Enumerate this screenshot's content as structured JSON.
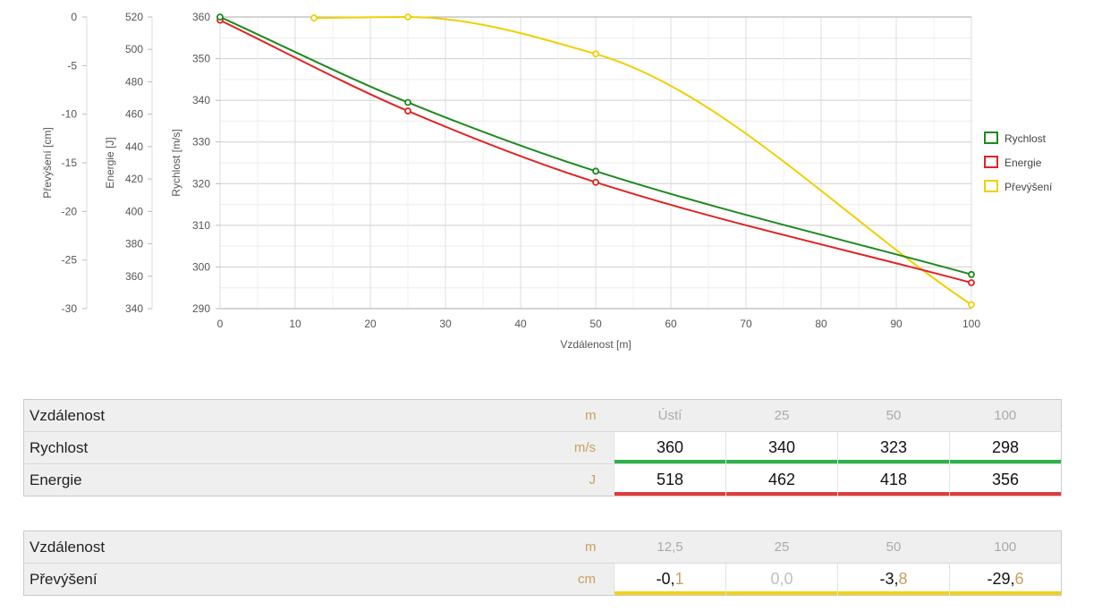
{
  "chart_data": {
    "type": "line",
    "xlabel": "Vzdálenost [m]",
    "xlim": [
      0,
      100
    ],
    "xticks": [
      0,
      10,
      20,
      30,
      40,
      50,
      60,
      70,
      80,
      90,
      100
    ],
    "y_axes": [
      {
        "id": "prev",
        "label": "Převýšení [cm]",
        "range": [
          -30,
          0
        ],
        "ticks": [
          0,
          -5,
          -10,
          -15,
          -20,
          -25,
          -30
        ]
      },
      {
        "id": "energ",
        "label": "Energie [J]",
        "range": [
          340,
          520
        ],
        "ticks": [
          520,
          500,
          480,
          460,
          440,
          420,
          400,
          380,
          360,
          340
        ]
      },
      {
        "id": "rych",
        "label": "Rychlost [m/s]",
        "range": [
          290,
          360
        ],
        "ticks": [
          360,
          350,
          340,
          330,
          320,
          310,
          300,
          290
        ]
      }
    ],
    "grid": true,
    "legend_position": "right",
    "series": [
      {
        "name": "Rychlost",
        "axis": "rych",
        "color": "#1e8a1e",
        "points": [
          [
            0,
            360
          ],
          [
            25,
            339.5
          ],
          [
            50,
            323
          ],
          [
            100,
            298.2
          ]
        ]
      },
      {
        "name": "Energie",
        "axis": "energ",
        "color": "#e02424",
        "points": [
          [
            0,
            518
          ],
          [
            25,
            462
          ],
          [
            50,
            418
          ],
          [
            100,
            356
          ]
        ]
      },
      {
        "name": "Převýšení",
        "axis": "prev",
        "color": "#f0d000",
        "points": [
          [
            12.5,
            -0.1
          ],
          [
            25,
            0.0
          ],
          [
            50,
            -3.8
          ],
          [
            100,
            -29.6
          ]
        ]
      }
    ]
  },
  "table1": {
    "rows": [
      {
        "label": "Vzdálenost",
        "unit": "m",
        "values": [
          "Ústí",
          "25",
          "50",
          "100"
        ]
      },
      {
        "label": "Rychlost",
        "unit": "m/s",
        "values": [
          "360",
          "340",
          "323",
          "298"
        ]
      },
      {
        "label": "Energie",
        "unit": "J",
        "values": [
          "518",
          "462",
          "418",
          "356"
        ]
      }
    ]
  },
  "table2": {
    "rows": [
      {
        "label": "Vzdálenost",
        "unit": "m",
        "values": [
          "12,5",
          "25",
          "50",
          "100"
        ]
      },
      {
        "label": "Převýšení",
        "unit": "cm",
        "values": [
          {
            "int": "-0,",
            "frac": "1"
          },
          {
            "int": "0,",
            "frac": "0"
          },
          {
            "int": "-3,",
            "frac": "8"
          },
          {
            "int": "-29,",
            "frac": "6"
          }
        ]
      }
    ]
  }
}
